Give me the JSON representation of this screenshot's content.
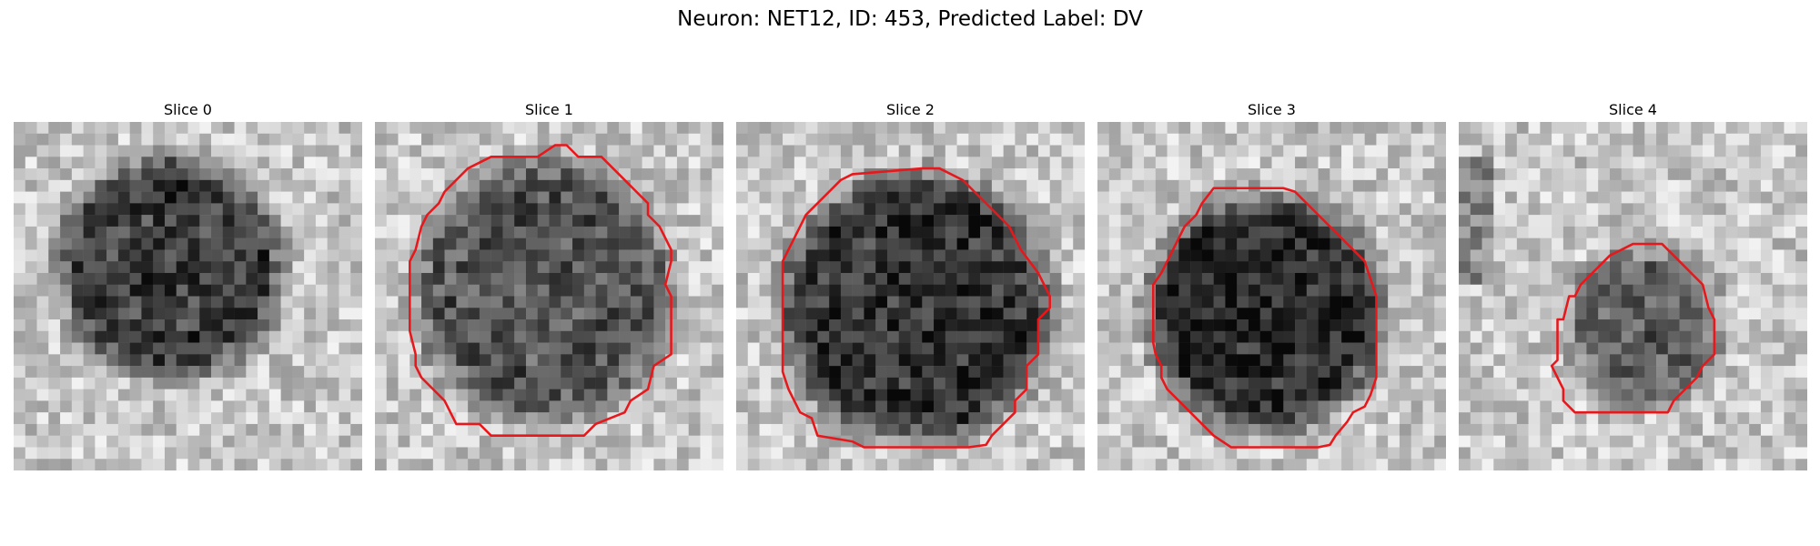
{
  "figure": {
    "title": "Neuron: NET12, ID: 453, Predicted Label: DV",
    "colors": {
      "contour": "#e8171b",
      "background": "#ffffff"
    },
    "grid": 30
  },
  "slices": [
    {
      "title": "Slice 0",
      "darkness": 0.55,
      "seed": 11,
      "contour": []
    },
    {
      "title": "Slice 1",
      "darkness": 0.45,
      "seed": 23,
      "contour": [
        [
          15.5,
          2
        ],
        [
          16.5,
          2
        ],
        [
          17.5,
          3
        ],
        [
          19.5,
          3
        ],
        [
          20.5,
          4
        ],
        [
          21.5,
          5
        ],
        [
          22.5,
          6
        ],
        [
          23.5,
          7
        ],
        [
          23.5,
          8
        ],
        [
          24.5,
          9
        ],
        [
          25.5,
          11
        ],
        [
          25.5,
          12
        ],
        [
          25,
          14
        ],
        [
          25.5,
          15
        ],
        [
          25.5,
          18
        ],
        [
          25.5,
          20
        ],
        [
          24,
          21
        ],
        [
          23.5,
          23
        ],
        [
          22,
          24
        ],
        [
          21.5,
          25
        ],
        [
          19,
          26
        ],
        [
          18,
          27
        ],
        [
          10,
          27
        ],
        [
          9,
          26
        ],
        [
          7,
          26
        ],
        [
          6,
          24
        ],
        [
          5,
          23
        ],
        [
          4,
          22
        ],
        [
          3.5,
          21
        ],
        [
          3.5,
          20
        ],
        [
          3,
          18
        ],
        [
          3,
          15
        ],
        [
          3,
          12
        ],
        [
          3.5,
          11
        ],
        [
          4,
          9
        ],
        [
          4.5,
          8
        ],
        [
          5.5,
          7
        ],
        [
          6,
          6
        ],
        [
          7,
          5
        ],
        [
          8,
          4
        ],
        [
          9,
          3.5
        ],
        [
          10,
          3
        ],
        [
          12,
          3
        ],
        [
          14,
          3
        ]
      ]
    },
    {
      "title": "Slice 2",
      "darkness": 0.58,
      "seed": 37,
      "contour": [
        [
          10,
          4.5
        ],
        [
          16,
          4
        ],
        [
          17.5,
          4
        ],
        [
          19.5,
          5
        ],
        [
          20.5,
          6
        ],
        [
          21.5,
          7
        ],
        [
          22.5,
          8
        ],
        [
          23.5,
          9
        ],
        [
          24.5,
          11
        ],
        [
          26,
          13
        ],
        [
          27,
          15
        ],
        [
          27,
          16
        ],
        [
          26,
          17
        ],
        [
          26,
          20
        ],
        [
          25,
          21
        ],
        [
          25,
          23
        ],
        [
          24,
          24
        ],
        [
          24,
          25
        ],
        [
          23,
          26
        ],
        [
          22,
          27
        ],
        [
          21.5,
          27.8
        ],
        [
          20,
          28
        ],
        [
          18.5,
          28
        ],
        [
          17.5,
          28
        ],
        [
          16,
          28
        ],
        [
          13,
          28
        ],
        [
          11,
          28
        ],
        [
          10,
          27.5
        ],
        [
          7,
          27
        ],
        [
          6.5,
          25.5
        ],
        [
          5.5,
          25
        ],
        [
          5,
          24
        ],
        [
          4.5,
          23
        ],
        [
          4,
          21.5
        ],
        [
          4,
          19
        ],
        [
          4,
          12
        ],
        [
          4.5,
          11
        ],
        [
          5,
          10
        ],
        [
          5.5,
          9
        ],
        [
          6,
          8
        ],
        [
          7,
          7
        ],
        [
          8,
          6
        ],
        [
          9,
          5
        ]
      ]
    },
    {
      "title": "Slice 3",
      "darkness": 0.62,
      "seed": 53,
      "contour": [
        [
          10,
          5.7
        ],
        [
          15,
          5.7
        ],
        [
          16,
          5.7
        ],
        [
          17,
          6
        ],
        [
          18,
          7
        ],
        [
          19,
          8
        ],
        [
          20,
          9
        ],
        [
          21,
          10
        ],
        [
          22,
          11
        ],
        [
          23,
          12
        ],
        [
          23.5,
          13.5
        ],
        [
          24,
          15
        ],
        [
          24,
          17
        ],
        [
          24,
          19
        ],
        [
          24,
          22
        ],
        [
          23.5,
          23.5
        ],
        [
          23,
          24.5
        ],
        [
          22,
          25
        ],
        [
          21.5,
          25.8
        ],
        [
          20.5,
          27
        ],
        [
          20,
          27.8
        ],
        [
          19,
          28
        ],
        [
          12,
          28
        ],
        [
          11.5,
          28
        ],
        [
          10,
          27
        ],
        [
          9,
          26
        ],
        [
          8,
          25
        ],
        [
          7,
          24
        ],
        [
          6,
          23
        ],
        [
          5.5,
          22
        ],
        [
          5.5,
          21
        ],
        [
          5,
          20
        ],
        [
          4.8,
          19
        ],
        [
          4.8,
          14
        ],
        [
          5.5,
          13
        ],
        [
          6,
          12
        ],
        [
          6.5,
          11
        ],
        [
          7,
          10
        ],
        [
          7.5,
          9
        ],
        [
          8.5,
          8
        ],
        [
          9,
          7
        ]
      ]
    },
    {
      "title": "Slice 4",
      "darkness": 0.4,
      "seed": 71,
      "contour": [
        [
          15,
          10.5
        ],
        [
          17.5,
          10.5
        ],
        [
          19,
          12
        ],
        [
          20,
          13
        ],
        [
          21,
          14
        ],
        [
          21.5,
          16
        ],
        [
          22,
          17
        ],
        [
          22,
          20
        ],
        [
          21,
          21
        ],
        [
          20.5,
          22
        ],
        [
          19.5,
          23
        ],
        [
          18.5,
          24
        ],
        [
          18,
          25
        ],
        [
          10,
          25
        ],
        [
          9,
          24
        ],
        [
          9,
          23
        ],
        [
          8.5,
          22
        ],
        [
          8,
          21
        ],
        [
          8.5,
          20.5
        ],
        [
          8.5,
          17
        ],
        [
          9,
          17
        ],
        [
          9.5,
          15
        ],
        [
          10,
          15
        ],
        [
          10.5,
          14
        ],
        [
          11.5,
          13
        ],
        [
          13,
          11.5
        ]
      ]
    }
  ]
}
